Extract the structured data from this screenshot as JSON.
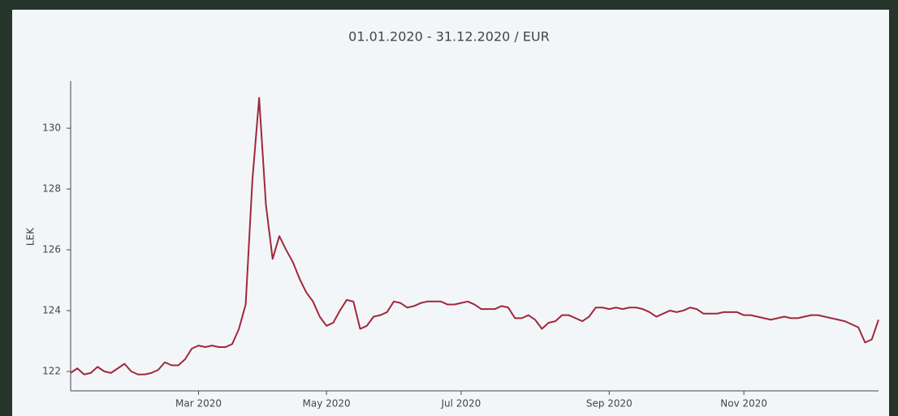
{
  "chart_data": {
    "type": "line",
    "title": "01.01.2020 - 31.12.2020 / EUR",
    "y_label": "LEK",
    "categories": [
      null,
      null,
      null,
      null,
      null,
      null,
      null,
      null,
      null,
      null,
      null,
      null,
      null,
      null,
      null,
      null,
      null,
      null,
      null,
      "Mar 2020",
      null,
      null,
      null,
      null,
      null,
      null,
      null,
      null,
      null,
      null,
      null,
      null,
      null,
      null,
      null,
      null,
      null,
      null,
      "May 2020",
      null,
      null,
      null,
      null,
      null,
      null,
      null,
      null,
      null,
      null,
      null,
      null,
      null,
      null,
      null,
      null,
      null,
      null,
      null,
      "Jul 2020",
      null,
      null,
      null,
      null,
      null,
      null,
      null,
      null,
      null,
      null,
      null,
      null,
      null,
      null,
      null,
      null,
      null,
      null,
      null,
      null,
      null,
      "Sep 2020",
      null,
      null,
      null,
      null,
      null,
      null,
      null,
      null,
      null,
      null,
      null,
      null,
      null,
      null,
      null,
      null,
      null,
      null,
      null,
      "Nov 2020",
      null,
      null,
      null,
      null,
      null,
      null,
      null,
      null,
      null,
      null,
      null,
      null,
      null,
      null,
      null,
      null,
      null,
      null,
      null,
      null
    ],
    "series": [
      {
        "color": "#a0283a",
        "values": [
          121.95,
          122.1,
          121.9,
          121.95,
          122.15,
          122.0,
          121.95,
          122.1,
          122.25,
          122.0,
          121.9,
          121.9,
          121.95,
          122.05,
          122.3,
          122.2,
          122.2,
          122.4,
          122.75,
          122.85,
          122.8,
          122.85,
          122.8,
          122.8,
          122.9,
          123.4,
          124.2,
          128.3,
          131.0,
          127.5,
          125.7,
          126.45,
          126.0,
          125.6,
          125.05,
          124.6,
          124.3,
          123.8,
          123.5,
          123.6,
          124.0,
          124.35,
          124.3,
          123.4,
          123.5,
          123.8,
          123.85,
          123.95,
          124.3,
          124.25,
          124.1,
          124.15,
          124.25,
          124.3,
          124.3,
          124.3,
          124.2,
          124.2,
          124.25,
          124.3,
          124.2,
          124.05,
          124.05,
          124.05,
          124.15,
          124.1,
          123.75,
          123.75,
          123.85,
          123.7,
          123.4,
          123.6,
          123.65,
          123.85,
          123.85,
          123.75,
          123.65,
          123.8,
          124.1,
          124.1,
          124.05,
          124.1,
          124.05,
          124.1,
          124.1,
          124.05,
          123.95,
          123.8,
          123.9,
          124.0,
          123.95,
          124.0,
          124.1,
          124.05,
          123.9,
          123.9,
          123.9,
          123.95,
          123.95,
          123.95,
          123.85,
          123.85,
          123.8,
          123.75,
          123.7,
          123.75,
          123.8,
          123.75,
          123.75,
          123.8,
          123.85,
          123.85,
          123.8,
          123.75,
          123.7,
          123.65,
          123.55,
          123.45,
          122.95,
          123.05,
          123.7
        ]
      }
    ],
    "ylim": [
      121.36,
      131.55
    ],
    "yticks": [
      122,
      124,
      126,
      128,
      130
    ],
    "grid": false
  }
}
